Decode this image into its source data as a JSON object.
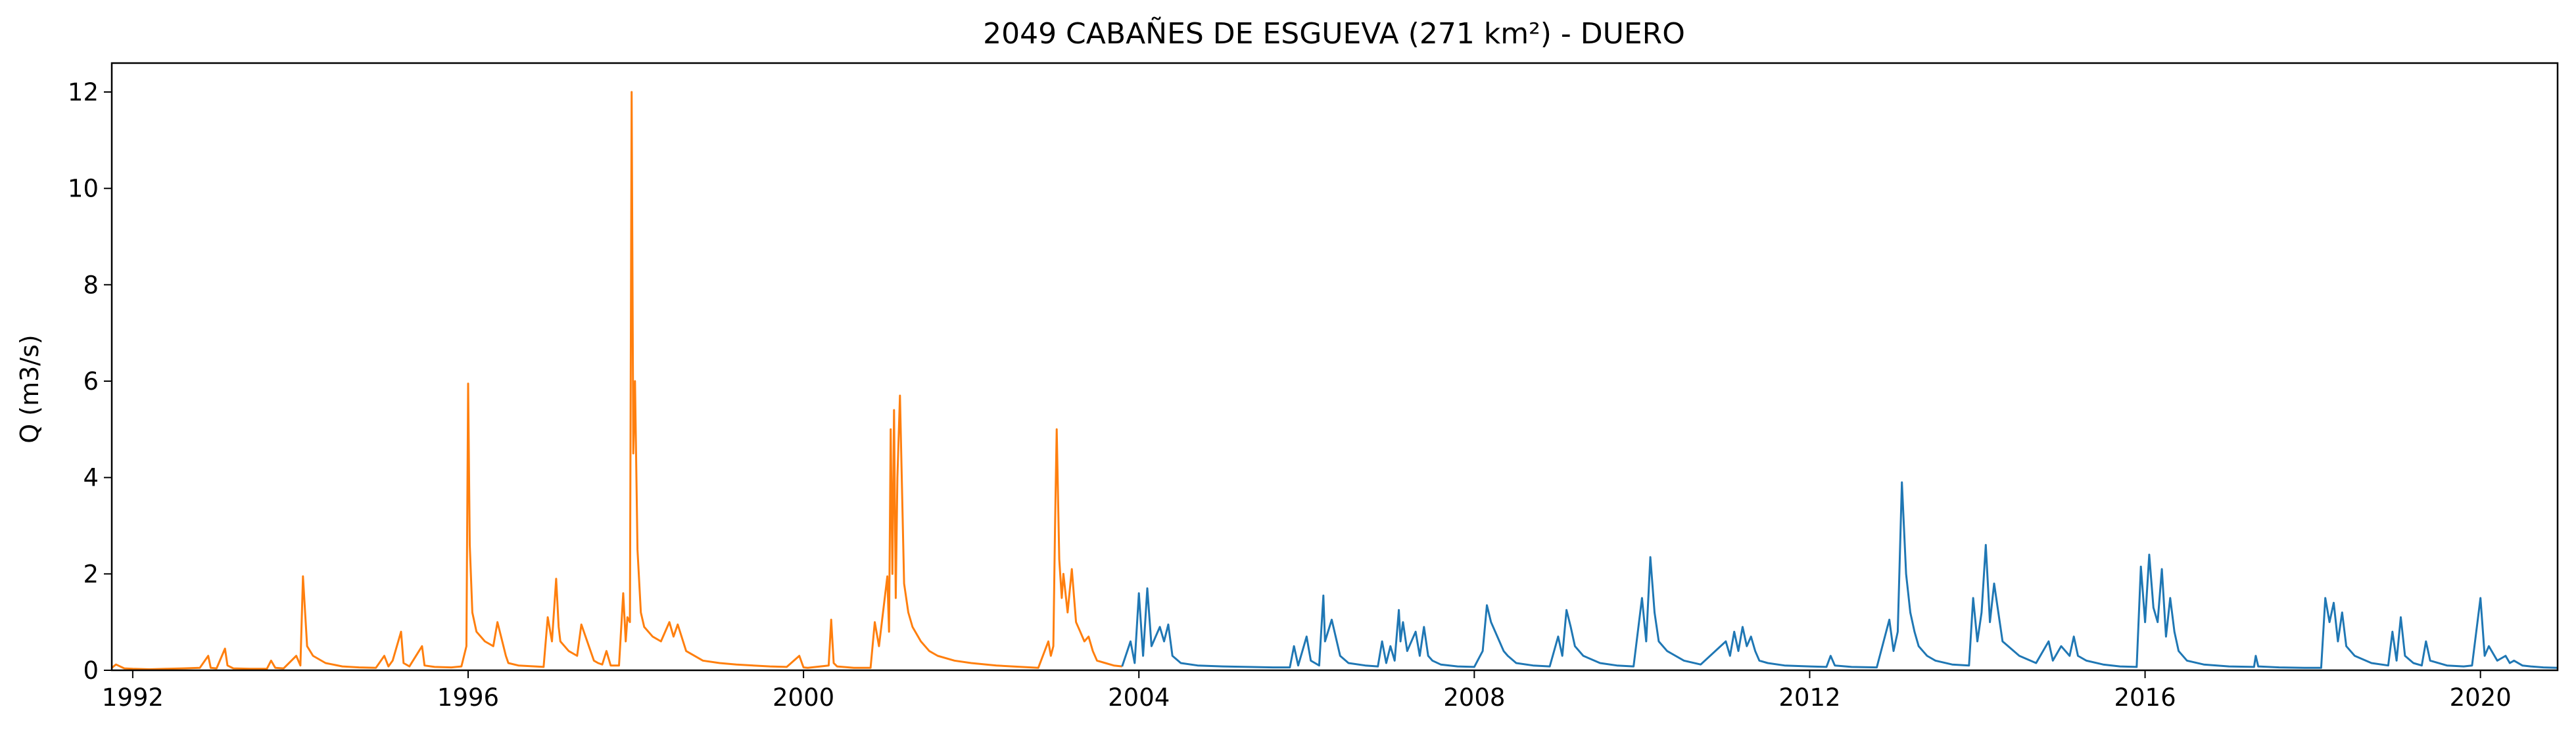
{
  "chart_data": {
    "type": "line",
    "title": "2049 CABAÑES DE ESGUEVA (271 km²) - DUERO",
    "xlabel": "",
    "ylabel": "Q (m3/s)",
    "xlim": [
      1991.75,
      2020.92
    ],
    "ylim": [
      0,
      12.6
    ],
    "xticks": [
      1992,
      1996,
      2000,
      2004,
      2008,
      2012,
      2016,
      2020
    ],
    "yticks": [
      0,
      2,
      4,
      6,
      8,
      10,
      12
    ],
    "grid": false,
    "legend": "none",
    "series": [
      {
        "color": "#ff7f0e",
        "x": [
          1991.75,
          1991.8,
          1991.9,
          1992.0,
          1992.2,
          1992.4,
          1992.6,
          1992.8,
          1992.9,
          1992.93,
          1993.0,
          1993.1,
          1993.13,
          1993.2,
          1993.4,
          1993.6,
          1993.65,
          1993.7,
          1993.8,
          1993.95,
          1994.0,
          1994.03,
          1994.08,
          1994.15,
          1994.3,
          1994.5,
          1994.7,
          1994.9,
          1995.0,
          1995.05,
          1995.1,
          1995.2,
          1995.23,
          1995.3,
          1995.45,
          1995.48,
          1995.6,
          1995.8,
          1995.92,
          1995.98,
          1996.0,
          1996.02,
          1996.05,
          1996.1,
          1996.2,
          1996.3,
          1996.35,
          1996.45,
          1996.48,
          1996.6,
          1996.8,
          1996.9,
          1996.95,
          1997.0,
          1997.05,
          1997.08,
          1997.1,
          1997.2,
          1997.3,
          1997.35,
          1997.5,
          1997.55,
          1997.6,
          1997.65,
          1997.7,
          1997.8,
          1997.85,
          1997.88,
          1997.9,
          1997.93,
          1997.95,
          1997.97,
          1997.99,
          1998.02,
          1998.06,
          1998.1,
          1998.2,
          1998.3,
          1998.4,
          1998.45,
          1998.5,
          1998.6,
          1998.8,
          1999.0,
          1999.2,
          1999.4,
          1999.6,
          1999.8,
          1999.95,
          2000.0,
          2000.05,
          2000.3,
          2000.33,
          2000.36,
          2000.4,
          2000.6,
          2000.7,
          2000.8,
          2000.85,
          2000.9,
          2001.0,
          2001.02,
          2001.04,
          2001.06,
          2001.08,
          2001.1,
          2001.12,
          2001.15,
          2001.2,
          2001.25,
          2001.3,
          2001.4,
          2001.5,
          2001.6,
          2001.8,
          2002.0,
          2002.3,
          2002.6,
          2002.8,
          2002.92,
          2002.95,
          2002.98,
          2003.0,
          2003.02,
          2003.05,
          2003.08,
          2003.1,
          2003.15,
          2003.2,
          2003.25,
          2003.3,
          2003.35,
          2003.4,
          2003.45,
          2003.5,
          2003.6,
          2003.7,
          2003.8
        ],
        "values": [
          0.05,
          0.12,
          0.04,
          0.03,
          0.02,
          0.03,
          0.04,
          0.05,
          0.3,
          0.05,
          0.04,
          0.45,
          0.1,
          0.04,
          0.03,
          0.03,
          0.2,
          0.05,
          0.04,
          0.3,
          0.1,
          1.95,
          0.5,
          0.3,
          0.15,
          0.08,
          0.06,
          0.05,
          0.3,
          0.08,
          0.2,
          0.8,
          0.15,
          0.08,
          0.5,
          0.1,
          0.07,
          0.06,
          0.08,
          0.5,
          5.95,
          2.6,
          1.2,
          0.8,
          0.6,
          0.5,
          1.0,
          0.3,
          0.15,
          0.1,
          0.08,
          0.07,
          1.1,
          0.6,
          1.9,
          0.9,
          0.6,
          0.4,
          0.3,
          0.95,
          0.2,
          0.15,
          0.12,
          0.4,
          0.1,
          0.1,
          1.6,
          0.6,
          1.1,
          1.0,
          12.0,
          4.5,
          6.0,
          2.5,
          1.2,
          0.9,
          0.7,
          0.6,
          1.0,
          0.7,
          0.95,
          0.4,
          0.2,
          0.15,
          0.12,
          0.1,
          0.08,
          0.07,
          0.3,
          0.06,
          0.05,
          0.1,
          1.05,
          0.15,
          0.08,
          0.05,
          0.05,
          0.05,
          1.0,
          0.5,
          1.95,
          0.8,
          5.0,
          2.0,
          5.4,
          1.5,
          4.0,
          5.7,
          1.8,
          1.2,
          0.9,
          0.6,
          0.4,
          0.3,
          0.2,
          0.15,
          0.1,
          0.07,
          0.05,
          0.6,
          0.3,
          0.5,
          3.0,
          5.0,
          2.3,
          1.5,
          2.0,
          1.2,
          2.1,
          1.0,
          0.8,
          0.6,
          0.7,
          0.4,
          0.2,
          0.15,
          0.1,
          0.08
        ]
      },
      {
        "color": "#1f77b4",
        "x": [
          2003.8,
          2003.9,
          2003.95,
          2004.0,
          2004.05,
          2004.1,
          2004.15,
          2004.2,
          2004.25,
          2004.3,
          2004.35,
          2004.4,
          2004.5,
          2004.7,
          2005.0,
          2005.3,
          2005.6,
          2005.8,
          2005.85,
          2005.9,
          2006.0,
          2006.05,
          2006.1,
          2006.15,
          2006.2,
          2006.22,
          2006.3,
          2006.4,
          2006.5,
          2006.7,
          2006.85,
          2006.9,
          2006.95,
          2007.0,
          2007.05,
          2007.1,
          2007.12,
          2007.15,
          2007.2,
          2007.3,
          2007.35,
          2007.4,
          2007.45,
          2007.5,
          2007.6,
          2007.8,
          2008.0,
          2008.1,
          2008.15,
          2008.2,
          2008.3,
          2008.35,
          2008.4,
          2008.5,
          2008.7,
          2008.9,
          2009.0,
          2009.05,
          2009.1,
          2009.15,
          2009.2,
          2009.3,
          2009.5,
          2009.7,
          2009.9,
          2010.0,
          2010.05,
          2010.1,
          2010.15,
          2010.2,
          2010.3,
          2010.5,
          2010.7,
          2011.0,
          2011.05,
          2011.1,
          2011.15,
          2011.2,
          2011.25,
          2011.3,
          2011.35,
          2011.4,
          2011.5,
          2011.7,
          2012.0,
          2012.2,
          2012.25,
          2012.3,
          2012.5,
          2012.8,
          2012.95,
          2013.0,
          2013.05,
          2013.1,
          2013.15,
          2013.2,
          2013.25,
          2013.3,
          2013.35,
          2013.4,
          2013.5,
          2013.7,
          2013.9,
          2013.95,
          2014.0,
          2014.05,
          2014.1,
          2014.15,
          2014.2,
          2014.3,
          2014.5,
          2014.7,
          2014.85,
          2014.9,
          2015.0,
          2015.1,
          2015.15,
          2015.2,
          2015.3,
          2015.5,
          2015.7,
          2015.9,
          2015.95,
          2016.0,
          2016.05,
          2016.1,
          2016.15,
          2016.2,
          2016.25,
          2016.3,
          2016.35,
          2016.4,
          2016.5,
          2016.7,
          2017.0,
          2017.3,
          2017.32,
          2017.35,
          2017.6,
          2017.9,
          2018.1,
          2018.15,
          2018.2,
          2018.25,
          2018.3,
          2018.35,
          2018.4,
          2018.5,
          2018.7,
          2018.9,
          2018.95,
          2019.0,
          2019.05,
          2019.1,
          2019.2,
          2019.3,
          2019.35,
          2019.4,
          2019.6,
          2019.8,
          2019.9,
          2020.0,
          2020.05,
          2020.1,
          2020.2,
          2020.3,
          2020.35,
          2020.4,
          2020.5,
          2020.6,
          2020.75,
          2020.92
        ],
        "values": [
          0.08,
          0.6,
          0.15,
          1.6,
          0.3,
          1.7,
          0.5,
          0.7,
          0.9,
          0.6,
          0.95,
          0.3,
          0.15,
          0.1,
          0.08,
          0.07,
          0.06,
          0.06,
          0.5,
          0.1,
          0.7,
          0.2,
          0.15,
          0.1,
          1.55,
          0.6,
          1.05,
          0.3,
          0.15,
          0.1,
          0.08,
          0.6,
          0.15,
          0.5,
          0.2,
          1.25,
          0.6,
          1.0,
          0.4,
          0.8,
          0.3,
          0.9,
          0.3,
          0.2,
          0.12,
          0.08,
          0.07,
          0.4,
          1.35,
          1.0,
          0.6,
          0.4,
          0.3,
          0.15,
          0.1,
          0.08,
          0.7,
          0.3,
          1.25,
          0.9,
          0.5,
          0.3,
          0.15,
          0.1,
          0.08,
          1.5,
          0.6,
          2.35,
          1.2,
          0.6,
          0.4,
          0.2,
          0.12,
          0.6,
          0.3,
          0.8,
          0.4,
          0.9,
          0.5,
          0.7,
          0.4,
          0.2,
          0.15,
          0.1,
          0.08,
          0.07,
          0.3,
          0.1,
          0.07,
          0.06,
          1.05,
          0.4,
          0.8,
          3.9,
          2.0,
          1.2,
          0.8,
          0.5,
          0.4,
          0.3,
          0.2,
          0.12,
          0.1,
          1.5,
          0.6,
          1.2,
          2.6,
          1.0,
          1.8,
          0.6,
          0.3,
          0.15,
          0.6,
          0.2,
          0.5,
          0.3,
          0.7,
          0.3,
          0.2,
          0.12,
          0.08,
          0.07,
          2.15,
          1.0,
          2.4,
          1.3,
          1.0,
          2.1,
          0.7,
          1.5,
          0.8,
          0.4,
          0.2,
          0.12,
          0.08,
          0.07,
          0.3,
          0.08,
          0.06,
          0.05,
          0.05,
          1.5,
          1.0,
          1.4,
          0.6,
          1.2,
          0.5,
          0.3,
          0.15,
          0.1,
          0.8,
          0.2,
          1.1,
          0.3,
          0.15,
          0.1,
          0.6,
          0.2,
          0.1,
          0.08,
          0.1,
          1.5,
          0.3,
          0.5,
          0.2,
          0.3,
          0.15,
          0.2,
          0.1,
          0.08,
          0.06,
          0.05
        ]
      }
    ]
  }
}
